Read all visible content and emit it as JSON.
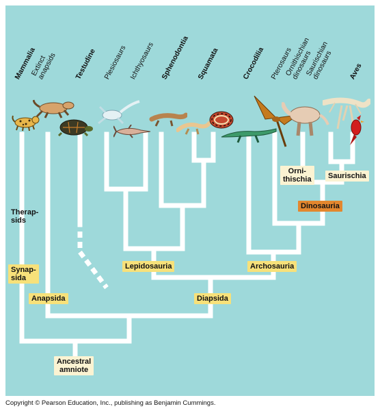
{
  "taxa": [
    {
      "id": "mammalia",
      "lines": [
        "Mammalia"
      ],
      "bold": true
    },
    {
      "id": "extinct-anapsids",
      "lines": [
        "Extinct",
        "anapsids"
      ],
      "bold": false
    },
    {
      "id": "testudines",
      "lines": [
        "Testudine"
      ],
      "bold": true
    },
    {
      "id": "plesiosaurs",
      "lines": [
        "Plesiosaurs"
      ],
      "bold": false
    },
    {
      "id": "ichthyosaurs",
      "lines": [
        "Ichthyosaurs"
      ],
      "bold": false
    },
    {
      "id": "sphenodontia",
      "lines": [
        "Sphenodontia"
      ],
      "bold": true
    },
    {
      "id": "squamata",
      "lines": [
        "Squamata"
      ],
      "bold": true
    },
    {
      "id": "crocodilia",
      "lines": [
        "Crocodilia"
      ],
      "bold": true
    },
    {
      "id": "pterosaurs",
      "lines": [
        "Pterosaurs"
      ],
      "bold": false
    },
    {
      "id": "ornithischian-dinosaurs",
      "lines": [
        "Ornithischian",
        "dinosaurs"
      ],
      "bold": false
    },
    {
      "id": "saurischian-dinosaurs",
      "lines": [
        "Saurischian",
        "dinosaurs"
      ],
      "bold": false
    },
    {
      "id": "aves",
      "lines": [
        "Aves"
      ],
      "bold": true
    }
  ],
  "clades": {
    "therapsids": "Therap-\nsids",
    "synapsida": "Synap-\nsida",
    "anapsida": "Anapsida",
    "lepidosauria": "Lepidosauria",
    "archosauria": "Archosauria",
    "diapsida": "Diapsida",
    "dinosauria": "Dinosauria",
    "ornithischia": "Orni-\nthischia",
    "saurischia": "Saurischia",
    "ancestral_amniote": "Ancestral\namniote"
  },
  "copyright": "Copyright © Pearson Education, Inc., publishing as Benjamin Cummings.",
  "colors": {
    "background": "#9ed9da",
    "branch": "#ffffff",
    "yellow_label": "#f7e17a",
    "cream_label": "#fbf3d2",
    "orange_label": "#e3872e"
  }
}
